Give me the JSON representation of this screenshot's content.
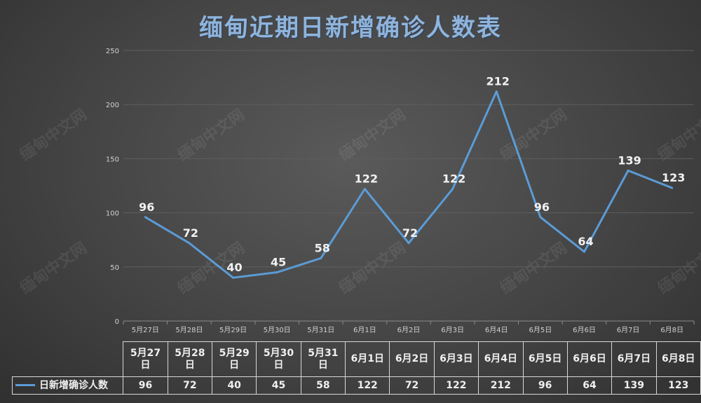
{
  "title": "缅甸近期日新增确诊人数表",
  "watermark": "缅甸中文网",
  "chart_data": {
    "type": "line",
    "title": "缅甸近期日新增确诊人数表",
    "categories": [
      "5月27日",
      "5月28日",
      "5月29日",
      "5月30日",
      "5月31日",
      "6月1日",
      "6月2日",
      "6月3日",
      "6月4日",
      "6月5日",
      "6月6日",
      "6月7日",
      "6月8日"
    ],
    "series": [
      {
        "name": "日新增确诊人数",
        "values": [
          96,
          72,
          40,
          45,
          58,
          122,
          72,
          122,
          212,
          96,
          64,
          139,
          123
        ],
        "color": "#5b9bd5"
      }
    ],
    "ylim": [
      0,
      250
    ],
    "yticks": [
      0,
      50,
      100,
      150,
      200,
      250
    ],
    "grid": true,
    "data_labels": true,
    "legend": "bottom-left (data table)"
  },
  "table": {
    "headers": [
      "5月27\n日",
      "5月28\n日",
      "5月29\n日",
      "5月30\n日",
      "5月31\n日",
      "6月1日",
      "6月2日",
      "6月3日",
      "6月4日",
      "6月5日",
      "6月6日",
      "6月7日",
      "6月8日"
    ],
    "series_label": "日新增确诊人数"
  }
}
